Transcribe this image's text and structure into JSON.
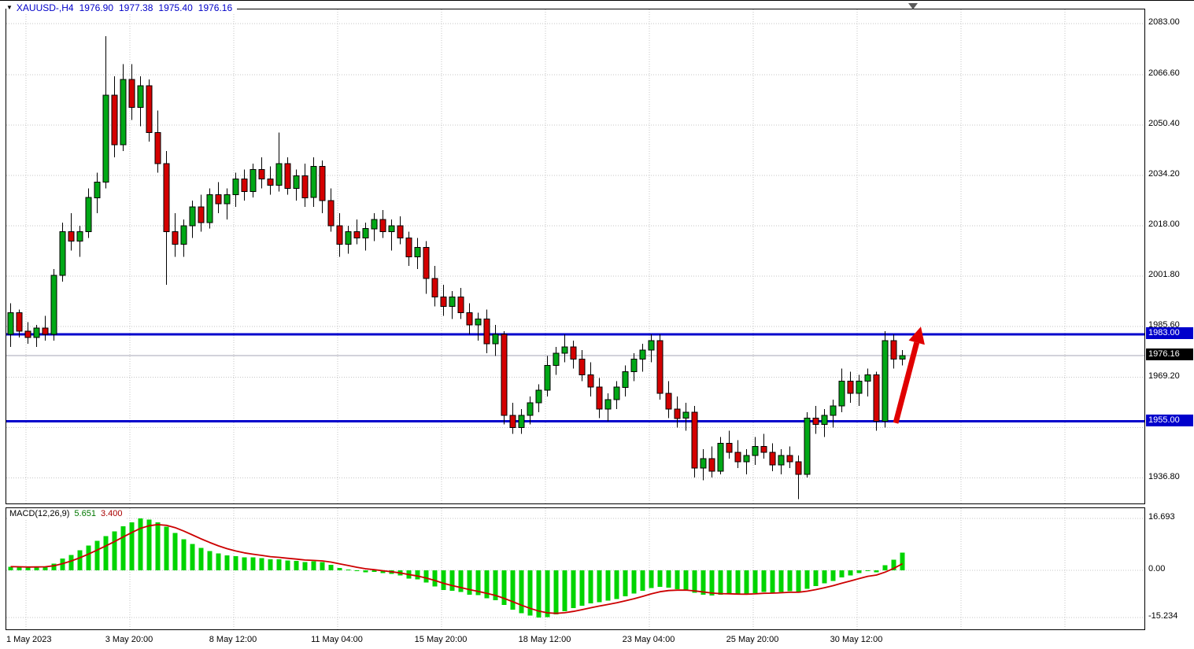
{
  "chart_data": {
    "type": "candlestick",
    "symbol_line": {
      "symbol": "XAUUSD-,H4",
      "open": "1976.90",
      "high": "1977.38",
      "low": "1975.40",
      "close": "1976.16"
    },
    "price_axis": {
      "ticks": [
        {
          "label": "2083.00",
          "value": 2083.0
        },
        {
          "label": "2066.60",
          "value": 2066.6
        },
        {
          "label": "2050.40",
          "value": 2050.4
        },
        {
          "label": "2034.20",
          "value": 2034.2
        },
        {
          "label": "2018.00",
          "value": 2018.0
        },
        {
          "label": "2001.80",
          "value": 2001.8
        },
        {
          "label": "1985.60",
          "value": 1985.6
        },
        {
          "label": "1969.20",
          "value": 1969.2
        },
        {
          "label": "",
          "value": 1953.0
        },
        {
          "label": "1936.80",
          "value": 1936.8
        }
      ]
    },
    "time_axis": {
      "labels": [
        "1 May 2023",
        "3 May 20:00",
        "8 May 12:00",
        "11 May 04:00",
        "15 May 20:00",
        "18 May 12:00",
        "23 May 04:00",
        "25 May 20:00",
        "30 May 12:00"
      ]
    },
    "levels": [
      {
        "price": 1983.0,
        "label": "1983.00"
      },
      {
        "price": 1955.0,
        "label": "1955.00"
      }
    ],
    "current_price": {
      "value": 1976.16,
      "label": "1976.16"
    },
    "arrow": {
      "from_price": 1954.5,
      "to_price": 1985.5
    },
    "colors": {
      "bull": "#00A816",
      "bear": "#D40000",
      "wick": "#000000",
      "level": "#0000CC",
      "level_label_bg": "#0000CC",
      "price_label_bg": "#000000",
      "current_line": "#A5A5B5",
      "histogram": "#00D400",
      "signal": "#CC0000",
      "accent_text": "#0000C8",
      "arrow": "#E00000",
      "grid": "#C6C6C6"
    },
    "candles": [
      [
        1983,
        1993,
        1979,
        1990
      ],
      [
        1990,
        1991,
        1982,
        1984
      ],
      [
        1984,
        1987,
        1980,
        1982
      ],
      [
        1982,
        1986,
        1979,
        1985
      ],
      [
        1985,
        1989,
        1981,
        1983
      ],
      [
        1983,
        2004,
        1981,
        2002
      ],
      [
        2002,
        2019,
        2000,
        2016
      ],
      [
        2016,
        2022,
        2010,
        2013
      ],
      [
        2013,
        2018,
        2008,
        2016
      ],
      [
        2016,
        2030,
        2014,
        2027
      ],
      [
        2027,
        2035,
        2022,
        2032
      ],
      [
        2032,
        2079,
        2030,
        2060
      ],
      [
        2060,
        2066,
        2040,
        2044
      ],
      [
        2044,
        2070,
        2042,
        2065
      ],
      [
        2065,
        2070,
        2052,
        2056
      ],
      [
        2056,
        2066,
        2050,
        2063
      ],
      [
        2063,
        2065,
        2045,
        2048
      ],
      [
        2048,
        2055,
        2035,
        2038
      ],
      [
        2038,
        2042,
        1999,
        2016
      ],
      [
        2016,
        2022,
        2008,
        2012
      ],
      [
        2012,
        2020,
        2008,
        2018
      ],
      [
        2018,
        2026,
        2014,
        2024
      ],
      [
        2024,
        2028,
        2016,
        2019
      ],
      [
        2019,
        2030,
        2017,
        2028
      ],
      [
        2028,
        2032,
        2022,
        2025
      ],
      [
        2025,
        2030,
        2020,
        2028
      ],
      [
        2028,
        2035,
        2024,
        2033
      ],
      [
        2033,
        2036,
        2026,
        2029
      ],
      [
        2029,
        2038,
        2027,
        2036
      ],
      [
        2036,
        2040,
        2030,
        2033
      ],
      [
        2033,
        2037,
        2028,
        2031
      ],
      [
        2031,
        2048,
        2029,
        2038
      ],
      [
        2038,
        2040,
        2028,
        2030
      ],
      [
        2030,
        2036,
        2026,
        2034
      ],
      [
        2034,
        2038,
        2024,
        2027
      ],
      [
        2027,
        2040,
        2024,
        2037
      ],
      [
        2037,
        2039,
        2022,
        2026
      ],
      [
        2026,
        2030,
        2016,
        2018
      ],
      [
        2018,
        2022,
        2008,
        2012
      ],
      [
        2012,
        2018,
        2009,
        2016
      ],
      [
        2016,
        2020,
        2012,
        2014
      ],
      [
        2014,
        2019,
        2010,
        2017
      ],
      [
        2017,
        2022,
        2013,
        2020
      ],
      [
        2020,
        2023,
        2014,
        2016
      ],
      [
        2016,
        2020,
        2010,
        2018
      ],
      [
        2018,
        2021,
        2012,
        2014
      ],
      [
        2014,
        2016,
        2005,
        2008
      ],
      [
        2008,
        2014,
        2004,
        2011
      ],
      [
        2011,
        2013,
        1996,
        2001
      ],
      [
        2001,
        2005,
        1992,
        1995
      ],
      [
        1995,
        1999,
        1989,
        1992
      ],
      [
        1992,
        1997,
        1988,
        1995
      ],
      [
        1995,
        1998,
        1988,
        1990
      ],
      [
        1990,
        1993,
        1983,
        1986
      ],
      [
        1986,
        1990,
        1981,
        1988
      ],
      [
        1988,
        1991,
        1977,
        1980
      ],
      [
        1980,
        1986,
        1976,
        1983
      ],
      [
        1983,
        1984,
        1954,
        1957
      ],
      [
        1957,
        1961,
        1951,
        1953
      ],
      [
        1953,
        1959,
        1951,
        1957
      ],
      [
        1957,
        1963,
        1954,
        1961
      ],
      [
        1961,
        1967,
        1958,
        1965
      ],
      [
        1965,
        1976,
        1963,
        1973
      ],
      [
        1973,
        1979,
        1970,
        1977
      ],
      [
        1977,
        1983,
        1974,
        1979
      ],
      [
        1979,
        1981,
        1972,
        1975
      ],
      [
        1975,
        1978,
        1968,
        1970
      ],
      [
        1970,
        1974,
        1963,
        1966
      ],
      [
        1966,
        1969,
        1956,
        1959
      ],
      [
        1959,
        1964,
        1955,
        1962
      ],
      [
        1962,
        1968,
        1959,
        1966
      ],
      [
        1966,
        1973,
        1963,
        1971
      ],
      [
        1971,
        1977,
        1968,
        1975
      ],
      [
        1975,
        1980,
        1971,
        1978
      ],
      [
        1978,
        1983,
        1974,
        1981
      ],
      [
        1981,
        1983,
        1962,
        1964
      ],
      [
        1964,
        1968,
        1956,
        1959
      ],
      [
        1959,
        1963,
        1953,
        1956
      ],
      [
        1956,
        1961,
        1952,
        1958
      ],
      [
        1958,
        1960,
        1937,
        1940
      ],
      [
        1940,
        1946,
        1936,
        1943
      ],
      [
        1943,
        1947,
        1937,
        1939
      ],
      [
        1939,
        1950,
        1938,
        1948
      ],
      [
        1948,
        1952,
        1943,
        1945
      ],
      [
        1945,
        1949,
        1940,
        1942
      ],
      [
        1942,
        1946,
        1938,
        1944
      ],
      [
        1944,
        1950,
        1941,
        1947
      ],
      [
        1947,
        1951,
        1943,
        1945
      ],
      [
        1945,
        1948,
        1939,
        1941
      ],
      [
        1941,
        1946,
        1938,
        1944
      ],
      [
        1944,
        1947,
        1940,
        1942
      ],
      [
        1942,
        1944,
        1930,
        1938
      ],
      [
        1938,
        1958,
        1937,
        1956
      ],
      [
        1956,
        1960,
        1951,
        1954
      ],
      [
        1954,
        1959,
        1950,
        1957
      ],
      [
        1957,
        1962,
        1953,
        1960
      ],
      [
        1960,
        1972,
        1958,
        1968
      ],
      [
        1968,
        1971,
        1961,
        1964
      ],
      [
        1964,
        1970,
        1960,
        1968
      ],
      [
        1968,
        1972,
        1963,
        1970
      ],
      [
        1970,
        1971,
        1952,
        1955
      ],
      [
        1955,
        1984,
        1953,
        1981
      ],
      [
        1981,
        1983,
        1972,
        1975
      ],
      [
        1975,
        1978,
        1973,
        1976.16
      ]
    ],
    "macd": {
      "label": "MACD(12,26,9)",
      "params": [
        12,
        26,
        9
      ],
      "main_value": "5.651",
      "signal_value": "3.400",
      "axis": [
        {
          "label": "16.693",
          "value": 16.693
        },
        {
          "label": "0.00",
          "value": 0
        },
        {
          "label": "-15.234",
          "value": -15.234
        }
      ],
      "main": [
        1.2,
        1.0,
        0.9,
        1.1,
        1.3,
        2.2,
        3.8,
        5.0,
        6.5,
        8.0,
        9.5,
        11.0,
        12.5,
        14.2,
        15.5,
        16.7,
        16.3,
        15.5,
        14.0,
        12.0,
        10.0,
        8.5,
        7.2,
        6.2,
        5.4,
        4.8,
        4.5,
        4.2,
        4.2,
        3.9,
        3.5,
        3.6,
        3.2,
        3.0,
        2.6,
        2.9,
        2.7,
        1.8,
        0.8,
        0.2,
        -0.3,
        -0.6,
        -0.5,
        -0.9,
        -1.2,
        -1.7,
        -2.6,
        -2.9,
        -3.9,
        -5.2,
        -6.3,
        -6.6,
        -7.0,
        -7.8,
        -8.0,
        -9.0,
        -9.6,
        -11.2,
        -12.6,
        -13.8,
        -14.6,
        -15.2,
        -15.0,
        -14.2,
        -13.2,
        -12.2,
        -11.4,
        -10.6,
        -10.2,
        -9.8,
        -9.2,
        -8.4,
        -7.5,
        -6.6,
        -5.7,
        -5.3,
        -5.6,
        -6.1,
        -6.3,
        -7.2,
        -7.8,
        -8.1,
        -7.9,
        -7.7,
        -7.9,
        -7.7,
        -7.3,
        -7.0,
        -7.2,
        -6.9,
        -6.7,
        -7.1,
        -5.9,
        -5.0,
        -4.2,
        -3.4,
        -2.3,
        -1.7,
        -0.9,
        -0.2,
        -0.6,
        1.6,
        3.4,
        5.651
      ]
    }
  }
}
